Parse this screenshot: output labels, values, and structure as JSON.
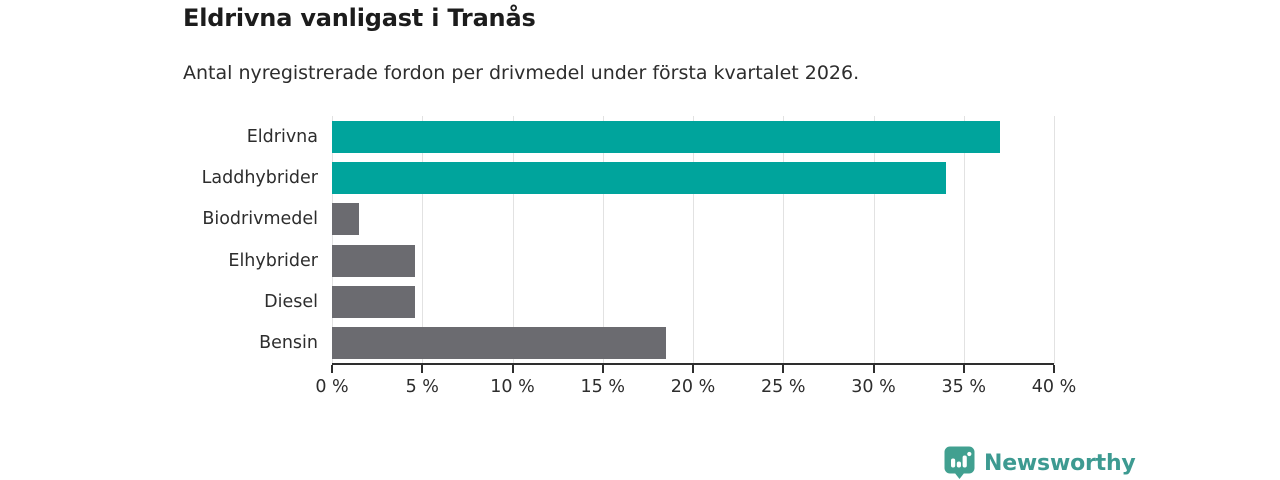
{
  "chart_data": {
    "type": "bar",
    "orientation": "horizontal",
    "title": "Eldrivna vanligast i Tranås",
    "subtitle": "Antal nyregistrerade fordon per drivmedel under första kvartalet 2026.",
    "categories": [
      "Eldrivna",
      "Laddhybrider",
      "Biodrivmedel",
      "Elhybrider",
      "Diesel",
      "Bensin"
    ],
    "values": [
      37,
      34,
      1.5,
      4.6,
      4.6,
      18.5
    ],
    "value_unit": "%",
    "xlabel": "",
    "ylabel": "",
    "xlim": [
      0,
      40
    ],
    "x_ticks": [
      0,
      5,
      10,
      15,
      20,
      25,
      30,
      35,
      40
    ],
    "x_tick_suffix": " %",
    "grid": true,
    "legend_position": "none",
    "colors": {
      "highlight": "#00a49c",
      "default": "#6b6b70"
    },
    "bar_color_keys": [
      "highlight",
      "highlight",
      "default",
      "default",
      "default",
      "default"
    ],
    "axis_color": "#2e2e2e",
    "gridline_color": "#e2e2e2"
  },
  "branding": {
    "logo_text": "Newsworthy",
    "logo_icon": "newsworthy-badge-bar-chart",
    "brand_color": "#3d9a91",
    "badge_color": "#41a090"
  }
}
